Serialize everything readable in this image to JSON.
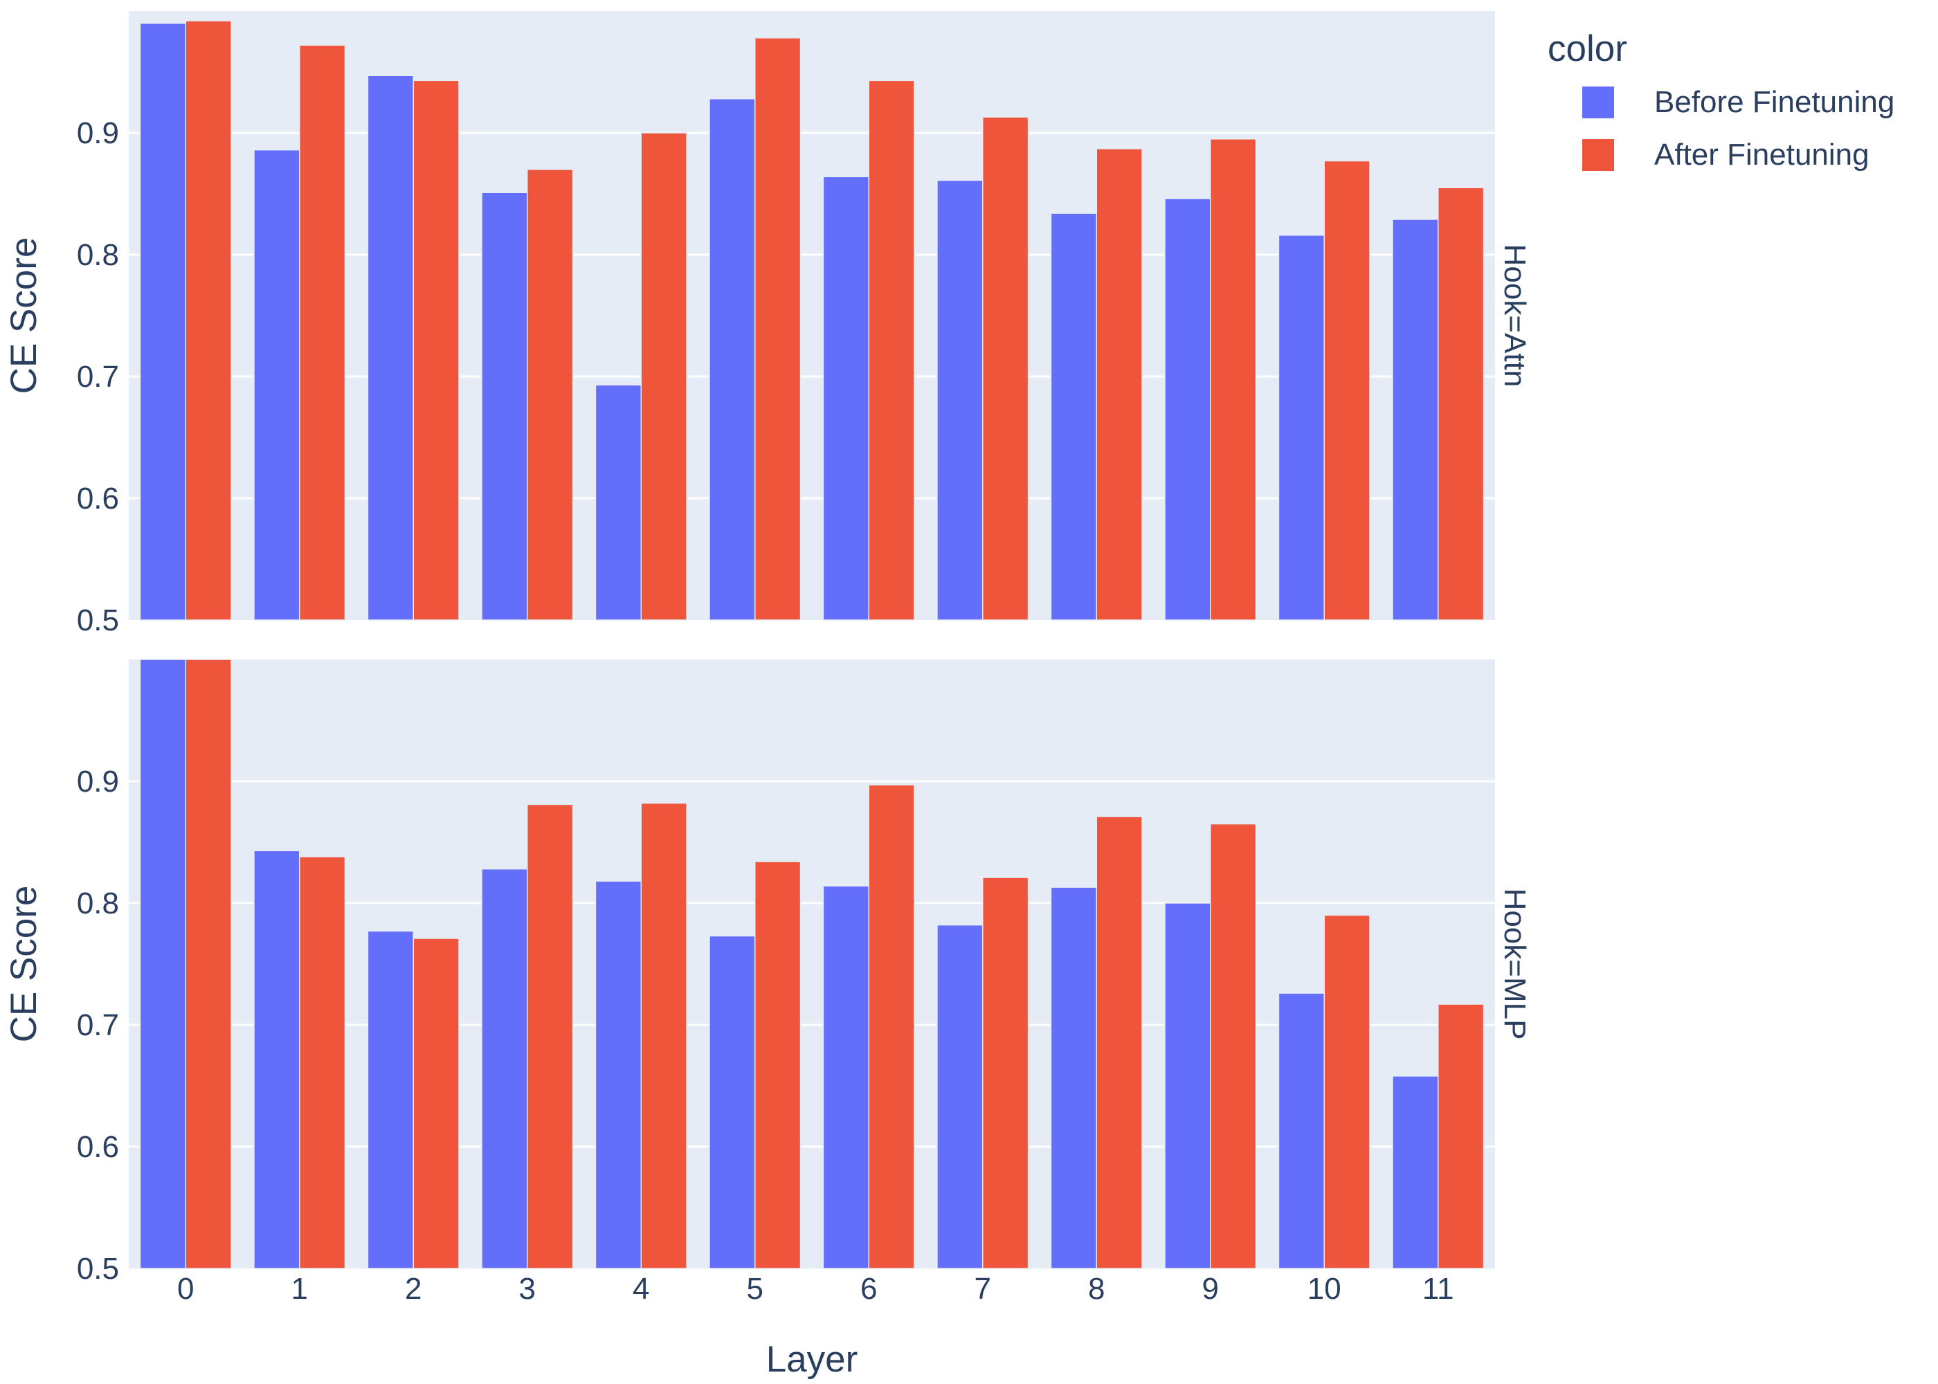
{
  "chart_data": {
    "type": "bar",
    "barmode": "group",
    "xlabel": "Layer",
    "ylabel": "CE Score",
    "ylim": [
      0.5,
      1.0
    ],
    "y_ticks": [
      0.5,
      0.6,
      0.7,
      0.8,
      0.9
    ],
    "categories": [
      "0",
      "1",
      "2",
      "3",
      "4",
      "5",
      "6",
      "7",
      "8",
      "9",
      "10",
      "11"
    ],
    "grid": true,
    "legend": {
      "title": "color",
      "placement": "top-right",
      "items": [
        "Before Finetuning",
        "After Finetuning"
      ]
    },
    "colors": {
      "Before Finetuning": "#636efa",
      "After Finetuning": "#ef553b",
      "plot_bg": "#e5ecf6",
      "grid": "#ffffff",
      "text": "#2a3f5f"
    },
    "facets": [
      {
        "label": "Hook=Attn",
        "series": [
          {
            "name": "Before Finetuning",
            "values": [
              0.99,
              0.886,
              0.947,
              0.851,
              0.693,
              0.928,
              0.864,
              0.861,
              0.834,
              0.846,
              0.816,
              0.829
            ]
          },
          {
            "name": "After Finetuning",
            "values": [
              0.992,
              0.972,
              0.943,
              0.87,
              0.9,
              0.978,
              0.943,
              0.913,
              0.887,
              0.895,
              0.877,
              0.855
            ]
          }
        ]
      },
      {
        "label": "Hook=MLP",
        "series": [
          {
            "name": "Before Finetuning",
            "values": [
              1.0,
              0.843,
              0.777,
              0.828,
              0.818,
              0.773,
              0.814,
              0.782,
              0.813,
              0.8,
              0.726,
              0.658
            ]
          },
          {
            "name": "After Finetuning",
            "values": [
              1.0,
              0.838,
              0.771,
              0.881,
              0.882,
              0.834,
              0.897,
              0.821,
              0.871,
              0.865,
              0.79,
              0.717
            ]
          }
        ]
      }
    ]
  }
}
